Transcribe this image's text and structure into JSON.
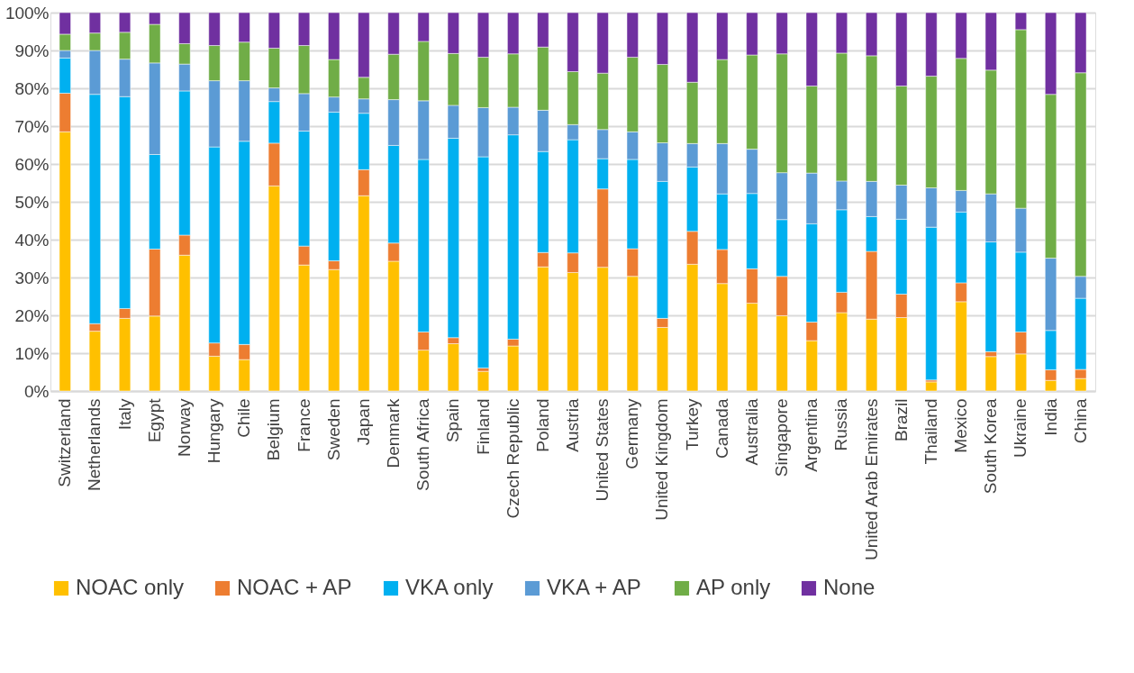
{
  "chart_data": {
    "type": "bar",
    "stacked": true,
    "grid": "y",
    "legend": "bottom",
    "categories": [
      "Switzerland",
      "Netherlands",
      "Italy",
      "Egypt",
      "Norway",
      "Hungary",
      "Chile",
      "Belgium",
      "France",
      "Sweden",
      "Japan",
      "Denmark",
      "South Africa",
      "Spain",
      "Finland",
      "Czech Republic",
      "Poland",
      "Austria",
      "United States",
      "Germany",
      "United Kingdom",
      "Turkey",
      "Canada",
      "Australia",
      "Singapore",
      "Argentina",
      "Russia",
      "United Arab Emirates",
      "Brazil",
      "Thailand",
      "Mexico",
      "South Korea",
      "Ukraine",
      "India",
      "China"
    ],
    "ylim": [
      0,
      100
    ],
    "yticks": [
      {
        "value": 0,
        "label": "0%"
      },
      {
        "value": 10,
        "label": "10%"
      },
      {
        "value": 20,
        "label": "20%"
      },
      {
        "value": 30,
        "label": "30%"
      },
      {
        "value": 40,
        "label": "40%"
      },
      {
        "value": 50,
        "label": "50%"
      },
      {
        "value": 60,
        "label": "60%"
      },
      {
        "value": 70,
        "label": "70%"
      },
      {
        "value": 80,
        "label": "80%"
      },
      {
        "value": 90,
        "label": "90%"
      },
      {
        "value": 100,
        "label": "100%"
      }
    ],
    "series": [
      {
        "name": "NOAC only",
        "color": "#ffc000",
        "values": [
          68.5,
          15.8,
          19.2,
          19.8,
          35.9,
          9.2,
          8.3,
          54.2,
          33.3,
          32.1,
          51.6,
          34.3,
          10.8,
          12.5,
          5.2,
          11.9,
          32.8,
          31.3,
          32.7,
          30.3,
          16.8,
          33.5,
          28.4,
          23.2,
          19.9,
          13.3,
          20.7,
          19.0,
          19.4,
          2.4,
          23.6,
          9.1,
          9.8,
          2.8,
          3.3
        ]
      },
      {
        "name": "NOAC + AP",
        "color": "#ed7d31",
        "values": [
          10.2,
          2.0,
          2.6,
          17.7,
          5.3,
          3.5,
          4.0,
          11.3,
          5.0,
          2.3,
          6.9,
          4.8,
          4.8,
          1.6,
          0.9,
          1.8,
          3.8,
          5.2,
          20.7,
          7.3,
          2.4,
          8.7,
          9.0,
          9.1,
          10.4,
          4.9,
          5.4,
          17.9,
          6.2,
          0.5,
          5.0,
          1.3,
          5.8,
          2.8,
          2.4
        ]
      },
      {
        "name": "VKA only",
        "color": "#00b0f0",
        "values": [
          9.3,
          60.6,
          56.0,
          25.0,
          38.1,
          51.8,
          53.7,
          11.0,
          30.4,
          39.3,
          14.9,
          25.8,
          45.6,
          52.7,
          55.8,
          54.0,
          26.7,
          29.9,
          8.0,
          23.6,
          36.2,
          17.0,
          14.7,
          19.9,
          15.0,
          26.0,
          21.8,
          9.2,
          19.8,
          40.4,
          18.7,
          29.0,
          21.1,
          10.4,
          18.8
        ]
      },
      {
        "name": "VKA + AP",
        "color": "#5b9bd5",
        "values": [
          2.0,
          11.6,
          9.9,
          24.2,
          7.1,
          17.5,
          16.0,
          3.6,
          9.9,
          4.0,
          3.8,
          12.1,
          15.5,
          8.7,
          13.0,
          7.3,
          10.9,
          4.0,
          7.7,
          7.3,
          10.2,
          6.2,
          13.3,
          11.7,
          12.4,
          13.4,
          7.6,
          9.3,
          9.0,
          10.4,
          5.7,
          12.7,
          11.6,
          19.1,
          5.8
        ]
      },
      {
        "name": "AP only",
        "color": "#70ad47",
        "values": [
          4.3,
          4.6,
          7.1,
          10.2,
          5.4,
          9.3,
          10.2,
          10.5,
          12.7,
          9.9,
          5.7,
          12.0,
          15.7,
          13.7,
          13.3,
          14.1,
          16.7,
          14.0,
          14.9,
          19.7,
          20.7,
          16.2,
          22.2,
          24.9,
          31.4,
          23.0,
          33.8,
          33.2,
          26.2,
          29.5,
          34.9,
          32.7,
          47.2,
          43.3,
          53.8
        ]
      },
      {
        "name": "None",
        "color": "#7030a0",
        "values": [
          5.7,
          5.4,
          5.2,
          3.1,
          8.2,
          8.7,
          7.8,
          9.4,
          8.7,
          12.4,
          17.1,
          11.0,
          7.6,
          10.8,
          11.8,
          10.9,
          9.1,
          15.6,
          16.0,
          11.8,
          13.7,
          18.4,
          12.4,
          11.2,
          10.9,
          19.4,
          10.7,
          11.4,
          19.4,
          16.8,
          12.1,
          15.2,
          4.5,
          21.6,
          15.9
        ]
      }
    ]
  }
}
